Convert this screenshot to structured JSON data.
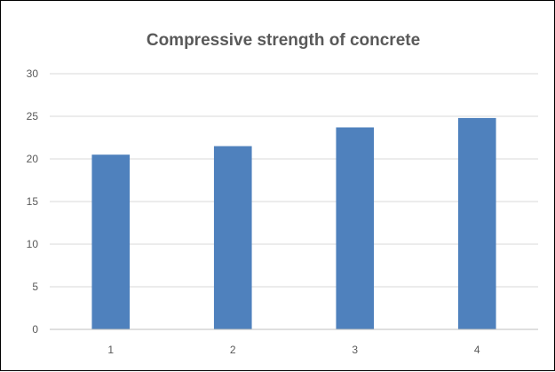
{
  "chart_data": {
    "type": "bar",
    "title": "Compressive strength of concrete",
    "xlabel": "",
    "ylabel": "",
    "categories": [
      "1",
      "2",
      "3",
      "4"
    ],
    "values": [
      20.5,
      21.5,
      23.7,
      24.8
    ],
    "ylim": [
      0,
      30
    ],
    "yticks": [
      "0",
      "5",
      "10",
      "15",
      "20",
      "25",
      "30"
    ],
    "grid": true,
    "legend": "none",
    "bar_color": "#4f81bd"
  }
}
